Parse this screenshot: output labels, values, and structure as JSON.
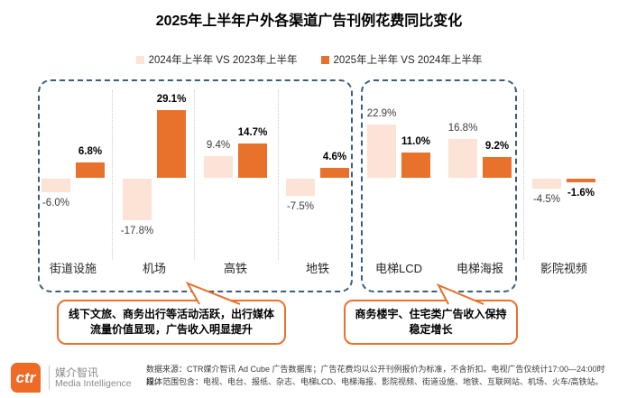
{
  "title": "2025年上半年户外各渠道广告刊例花费同比变化",
  "legend": {
    "items": [
      {
        "label": "2024年上半年 VS 2023年上半年",
        "color": "#FBE3D5"
      },
      {
        "label": "2025年上半年 VS 2024年上半年",
        "color": "#E8722C"
      }
    ]
  },
  "chart_data": {
    "type": "bar",
    "title": "2025年上半年户外各渠道广告刊例花费同比变化",
    "unit": "%",
    "grid": false,
    "legend_position": "top",
    "categories": [
      "街道设施",
      "机场",
      "高铁",
      "地铁",
      "电梯LCD",
      "电梯海报",
      "影院视频"
    ],
    "series": [
      {
        "name": "2024年上半年 VS 2023年上半年",
        "color": "#FBE3D5",
        "values": [
          -6.0,
          -17.8,
          9.4,
          -7.5,
          22.9,
          16.8,
          -4.5
        ],
        "labels": [
          "-6.0%",
          "-17.8%",
          "9.4%",
          "-7.5%",
          "22.9%",
          "16.8%",
          "-4.5%"
        ]
      },
      {
        "name": "2025年上半年 VS 2024年上半年",
        "color": "#E8722C",
        "values": [
          6.8,
          29.1,
          14.7,
          4.6,
          11.0,
          9.2,
          -1.6
        ],
        "labels": [
          "6.8%",
          "29.1%",
          "14.7%",
          "4.6%",
          "11.0%",
          "9.2%",
          "-1.6%"
        ]
      }
    ],
    "groups": [
      {
        "categories": [
          "街道设施",
          "机场",
          "高铁",
          "地铁"
        ],
        "note": "线下文旅、商务出行等活动活跃，出行媒体流量价值显现，广告收入明显提升"
      },
      {
        "categories": [
          "电梯LCD",
          "电梯海报"
        ],
        "note": "商务楼宇、住宅类广告收入保持稳定增长"
      }
    ]
  },
  "callouts": [
    {
      "lines": [
        "线下文旅、商务出行等活动活跃，出行媒体",
        "流量价值显现，广告收入明显提升"
      ]
    },
    {
      "lines": [
        "商务楼宇、住宅类广告收入保持",
        "稳定增长"
      ]
    }
  ],
  "footer": {
    "logo_text": "ctr",
    "brand_cn": "媒介智讯",
    "brand_en": "Media Intelligence",
    "source_line1": "数据来源：CTR媒介智讯 Ad Cube 广告数据库；广告花费均以公开刊例报价为标准，不含折扣。电视广告仅统计17:00—24:00时段。",
    "source_line2": "媒体范围包含：电视、电台、报纸、杂志、电梯LCD、电梯海报、影院视频、街道设施、地铁、互联网站、机场、火车/高铁站。"
  },
  "colors": {
    "accent_orange": "#E8722C",
    "pale_orange": "#FBE3D5",
    "dashed_blue": "#3C5E7E"
  }
}
